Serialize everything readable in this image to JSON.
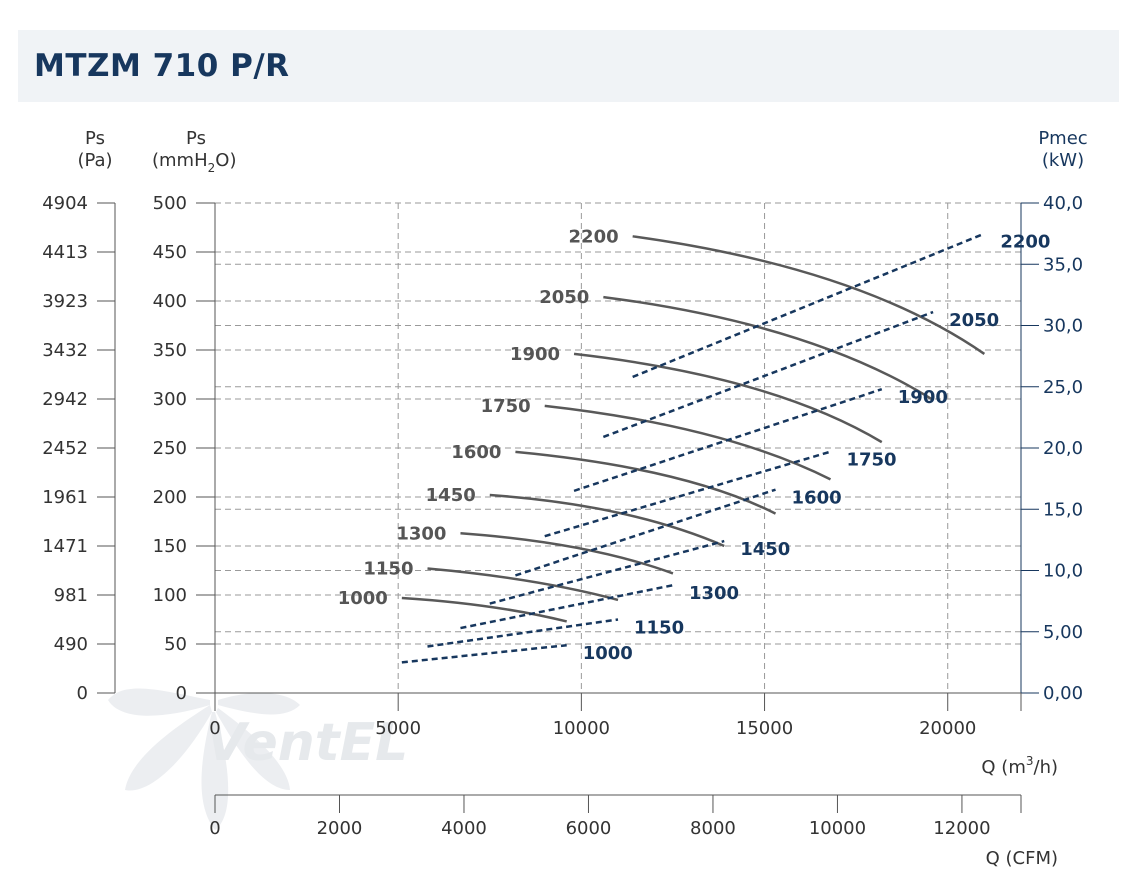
{
  "title": "MTZM 710 P/R",
  "watermark": "VentEL",
  "chart_data": {
    "type": "line",
    "title": "MTZM 710 P/R",
    "axes": {
      "left_pa": {
        "label_line1": "Ps",
        "label_line2": "(Pa)",
        "ticks": [
          "0",
          "490",
          "981",
          "1471",
          "1961",
          "2452",
          "2942",
          "3432",
          "3923",
          "4413",
          "4904"
        ]
      },
      "left_mmh2o": {
        "label_line1": "Ps",
        "label_line2": "(mmH",
        "label_sub": "2",
        "label_end": "O)",
        "ylim": [
          0,
          500
        ],
        "ticks": [
          "0",
          "50",
          "100",
          "150",
          "200",
          "250",
          "300",
          "350",
          "400",
          "450",
          "500"
        ]
      },
      "right_kw": {
        "label_line1": "Pmec",
        "label_line2": "(kW)",
        "ylim": [
          0,
          40
        ],
        "ticks": [
          "0,00",
          "5,00",
          "10,0",
          "15,0",
          "20,0",
          "25,0",
          "30,0",
          "35,0",
          "40,0"
        ]
      },
      "x_m3h": {
        "label_pre": "Q (m",
        "label_sup": "3",
        "label_post": "/h)",
        "xlim": [
          0,
          22000
        ],
        "ticks": [
          "0",
          "5000",
          "10000",
          "15000",
          "20000"
        ]
      },
      "x_cfm": {
        "label": "Q (CFM)",
        "ticks": [
          "0",
          "2000",
          "4000",
          "6000",
          "8000",
          "10000",
          "12000"
        ]
      }
    },
    "grid": true,
    "pressure_series": [
      {
        "name": "1000",
        "x": [
          5100,
          7500,
          9600
        ],
        "y": [
          97,
          88,
          73
        ]
      },
      {
        "name": "1150",
        "x": [
          5800,
          8600,
          11000
        ],
        "y": [
          127,
          114,
          95
        ]
      },
      {
        "name": "1300",
        "x": [
          6700,
          9900,
          12500
        ],
        "y": [
          163,
          148,
          122
        ]
      },
      {
        "name": "1450",
        "x": [
          7500,
          11000,
          13900
        ],
        "y": [
          202,
          184,
          150
        ]
      },
      {
        "name": "1600",
        "x": [
          8200,
          12300,
          15300
        ],
        "y": [
          246,
          222,
          183
        ]
      },
      {
        "name": "1750",
        "x": [
          9000,
          13400,
          16800
        ],
        "y": [
          293,
          264,
          218
        ]
      },
      {
        "name": "1900",
        "x": [
          9800,
          14600,
          18200
        ],
        "y": [
          346,
          312,
          256
        ]
      },
      {
        "name": "2050",
        "x": [
          10600,
          15700,
          19600
        ],
        "y": [
          404,
          364,
          299
        ]
      },
      {
        "name": "2200",
        "x": [
          11400,
          16900,
          21000
        ],
        "y": [
          466,
          420,
          346
        ]
      }
    ],
    "power_series": [
      {
        "name": "1000",
        "x": [
          5100,
          9600
        ],
        "y": [
          2.5,
          3.9
        ]
      },
      {
        "name": "1150",
        "x": [
          5800,
          11000
        ],
        "y": [
          3.8,
          6.0
        ]
      },
      {
        "name": "1300",
        "x": [
          6700,
          12500
        ],
        "y": [
          5.3,
          8.8
        ]
      },
      {
        "name": "1450",
        "x": [
          7500,
          13900
        ],
        "y": [
          7.3,
          12.4
        ]
      },
      {
        "name": "1600",
        "x": [
          8200,
          15300
        ],
        "y": [
          9.6,
          16.6
        ]
      },
      {
        "name": "1750",
        "x": [
          9000,
          16800
        ],
        "y": [
          12.8,
          19.7
        ]
      },
      {
        "name": "1900",
        "x": [
          9800,
          18200
        ],
        "y": [
          16.5,
          24.8
        ]
      },
      {
        "name": "2050",
        "x": [
          10600,
          19600
        ],
        "y": [
          20.9,
          31.1
        ]
      },
      {
        "name": "2200",
        "x": [
          11400,
          21000
        ],
        "y": [
          25.8,
          37.5
        ]
      }
    ]
  }
}
